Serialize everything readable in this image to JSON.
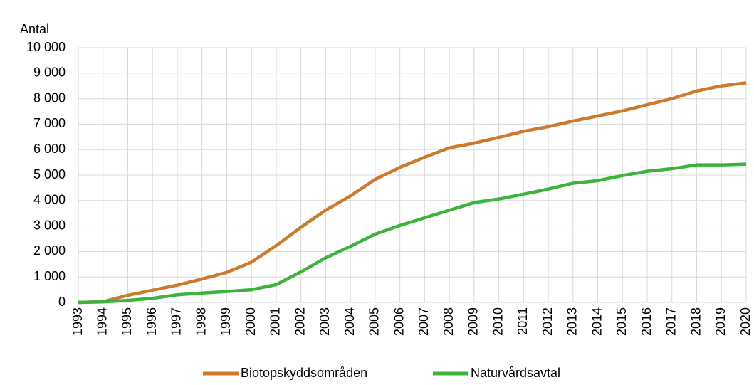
{
  "chart_data": {
    "type": "line",
    "y_axis_label": "Antal",
    "x": [
      1993,
      1994,
      1995,
      1996,
      1997,
      1998,
      1999,
      2000,
      2001,
      2002,
      2003,
      2004,
      2005,
      2006,
      2007,
      2008,
      2009,
      2010,
      2011,
      2012,
      2013,
      2014,
      2015,
      2016,
      2017,
      2018,
      2019,
      2020
    ],
    "xlim": [
      1993,
      2020
    ],
    "xticks": [
      1993,
      1994,
      1995,
      1996,
      1997,
      1998,
      1999,
      2000,
      2001,
      2002,
      2003,
      2004,
      2005,
      2006,
      2007,
      2008,
      2009,
      2010,
      2011,
      2012,
      2013,
      2014,
      2015,
      2016,
      2017,
      2018,
      2019,
      2020
    ],
    "ylim": [
      0,
      10000
    ],
    "yticks": [
      0,
      {
        "value": 1000,
        "label": "1 000"
      },
      {
        "value": 2000,
        "label": "2 000"
      },
      {
        "value": 3000,
        "label": "3 000"
      },
      {
        "value": 4000,
        "label": "4 000"
      },
      {
        "value": 5000,
        "label": "5 000"
      },
      {
        "value": 6000,
        "label": "6 000"
      },
      {
        "value": 7000,
        "label": "7 000"
      },
      {
        "value": 8000,
        "label": "8 000"
      },
      {
        "value": 9000,
        "label": "9 000"
      },
      {
        "value": 10000,
        "label": "10 000"
      }
    ],
    "grid": true,
    "legend": "bottom",
    "series": [
      {
        "name": "Biotopskyddsområden",
        "color": "#cc7a2c",
        "values": [
          0,
          30,
          280,
          480,
          680,
          920,
          1180,
          1580,
          2230,
          2950,
          3620,
          4180,
          4830,
          5300,
          5700,
          6070,
          6250,
          6480,
          6720,
          6900,
          7120,
          7320,
          7520,
          7760,
          8000,
          8300,
          8500,
          8620
        ]
      },
      {
        "name": "Naturvårdsavtal",
        "color": "#3cb43c",
        "values": [
          0,
          20,
          80,
          160,
          300,
          370,
          430,
          500,
          700,
          1200,
          1750,
          2200,
          2680,
          3020,
          3320,
          3620,
          3920,
          4060,
          4250,
          4450,
          4680,
          4780,
          4980,
          5150,
          5250,
          5400,
          5400,
          5430
        ]
      }
    ]
  }
}
